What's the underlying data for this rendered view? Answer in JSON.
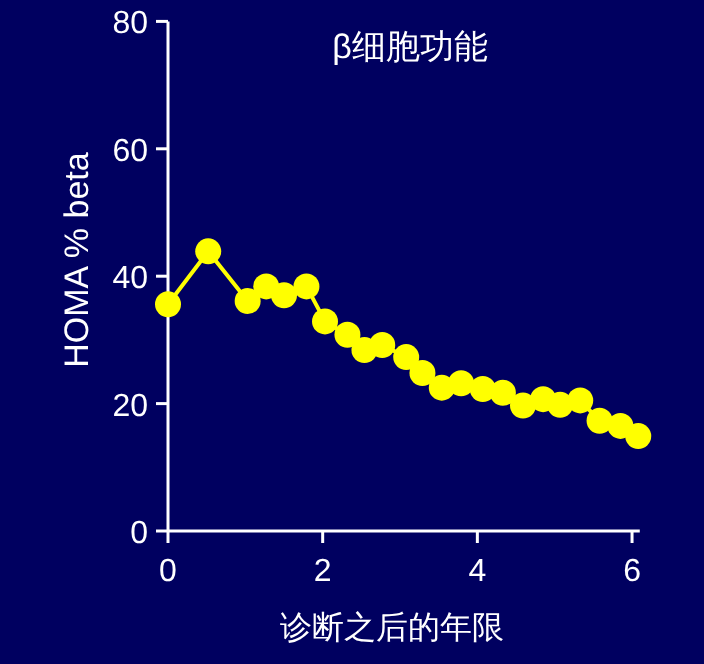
{
  "chart_data": {
    "type": "line",
    "title": "β细胞功能",
    "xlabel": "诊断之后的年限",
    "ylabel": "HOMA % beta",
    "x": [
      0,
      0.52,
      1.03,
      1.27,
      1.5,
      1.79,
      2.03,
      2.32,
      2.54,
      2.77,
      3.08,
      3.29,
      3.54,
      3.79,
      4.07,
      4.33,
      4.59,
      4.85,
      5.07,
      5.33,
      5.58,
      5.85,
      6.08
    ],
    "series": [
      {
        "color": "#ffff00",
        "values": [
          35.6,
          43.9,
          36.1,
          38.4,
          37.0,
          38.4,
          32.9,
          30.8,
          28.4,
          29.2,
          27.3,
          24.8,
          22.5,
          23.2,
          22.3,
          21.7,
          19.7,
          20.7,
          19.8,
          20.5,
          17.3,
          16.5,
          14.9
        ]
      }
    ],
    "xlim": [
      0,
      6.1
    ],
    "ylim": [
      0,
      80
    ],
    "xticks": [
      0,
      2,
      4,
      6
    ],
    "yticks": [
      0,
      20,
      40,
      60,
      80
    ],
    "marker": "circle",
    "line_style": "solid"
  }
}
